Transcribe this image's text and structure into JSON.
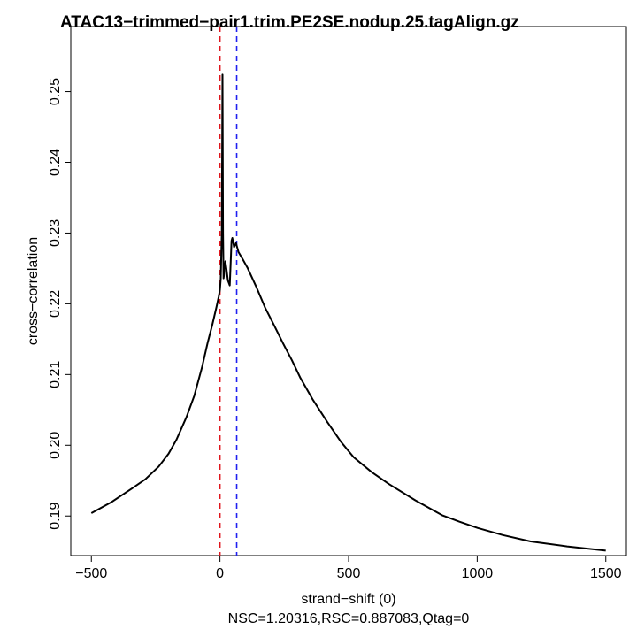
{
  "chart_data": {
    "type": "line",
    "title": "ATAC13−trimmed−pair1.trim.PE2SE.nodup.25.tagAlign.gz",
    "xlabel": "strand−shift (0)",
    "ylabel": "cross−correlation",
    "subtitle": "NSC=1.20316,RSC=0.887083,Qtag=0",
    "xlim": [
      -580,
      1580
    ],
    "ylim": [
      0.1844,
      0.2592
    ],
    "xticks": [
      -500,
      0,
      500,
      1000,
      1500
    ],
    "xtick_labels": [
      "−500",
      "0",
      "500",
      "1000",
      "1500"
    ],
    "yticks": [
      0.19,
      0.2,
      0.21,
      0.22,
      0.23,
      0.24,
      0.25
    ],
    "ytick_labels": [
      "0.19",
      "0.20",
      "0.21",
      "0.22",
      "0.23",
      "0.24",
      "0.25"
    ],
    "grid": false,
    "vlines": [
      {
        "x": 0,
        "color": "#e0151c",
        "style": "dashed"
      },
      {
        "x": 65,
        "color": "#2020f0",
        "style": "dashed"
      }
    ],
    "series": [
      {
        "name": "cross-correlation",
        "color": "#000000",
        "x": [
          -500,
          -420,
          -342,
          -290,
          -238,
          -200,
          -169,
          -130,
          -100,
          -70,
          -48,
          -30,
          -14,
          -5,
          0,
          3,
          7,
          10,
          12,
          14,
          17,
          21,
          25,
          31,
          38,
          42,
          45,
          48,
          55,
          62,
          72,
          90,
          107,
          140,
          175,
          210,
          244,
          280,
          313,
          360,
          417,
          470,
          520,
          590,
          658,
          760,
          864,
          930,
          1002,
          1100,
          1208,
          1350,
          1500
        ],
        "y": [
          0.1904,
          0.192,
          0.1939,
          0.1952,
          0.197,
          0.1988,
          0.2008,
          0.204,
          0.207,
          0.211,
          0.2145,
          0.217,
          0.2195,
          0.221,
          0.222,
          0.2235,
          0.23,
          0.2524,
          0.23,
          0.2236,
          0.2245,
          0.226,
          0.225,
          0.2233,
          0.2226,
          0.226,
          0.2289,
          0.2293,
          0.228,
          0.2286,
          0.2273,
          0.2262,
          0.2251,
          0.2225,
          0.2195,
          0.217,
          0.2145,
          0.212,
          0.2095,
          0.2065,
          0.2033,
          0.2005,
          0.1983,
          0.1962,
          0.1945,
          0.1922,
          0.1901,
          0.1892,
          0.1883,
          0.1873,
          0.1864,
          0.1857,
          0.1851
        ]
      }
    ]
  }
}
